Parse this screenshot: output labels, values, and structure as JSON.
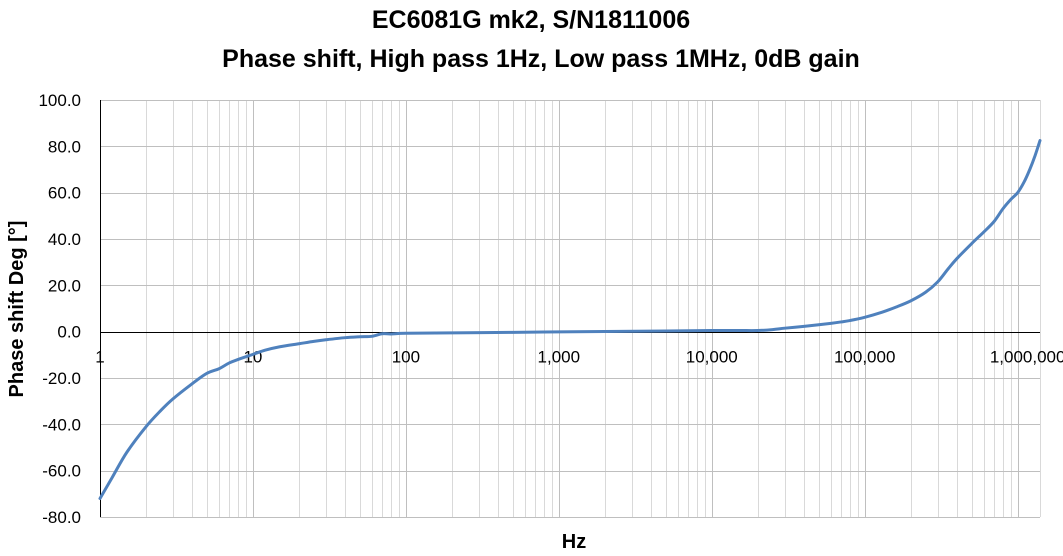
{
  "chart_data": {
    "type": "line",
    "title": "EC6081G mk2, S/N1811006",
    "subtitle": "Phase shift, High pass 1Hz, Low pass 1MHz, 0dB gain",
    "xlabel": "Hz",
    "ylabel": "Phase shift Deg [°]",
    "x_scale": "log",
    "xlim": [
      1,
      1400000
    ],
    "ylim": [
      -80,
      100
    ],
    "y_ticks": [
      100,
      80,
      60,
      40,
      20,
      0,
      -20,
      -40,
      -60,
      -80
    ],
    "y_tick_labels": [
      "100.0",
      "80.0",
      "60.0",
      "40.0",
      "20.0",
      "0.0",
      "-20.0",
      "-40.0",
      "-60.0",
      "-80.0"
    ],
    "x_ticks": [
      1,
      10,
      100,
      1000,
      10000,
      100000,
      1000000
    ],
    "x_tick_labels": [
      "1",
      "10",
      "100",
      "1,000",
      "10,000",
      "100,000",
      "1,000,000"
    ],
    "grid": true,
    "legend": "none",
    "series": [
      {
        "color": "#4f81bd",
        "x": [
          1,
          1.2,
          1.5,
          2,
          2.5,
          3,
          4,
          5,
          6,
          7,
          8,
          10,
          12,
          15,
          20,
          25,
          30,
          40,
          50,
          60,
          70,
          80,
          100,
          200,
          500,
          1000,
          2000,
          5000,
          10000,
          15000,
          20000,
          25000,
          30000,
          40000,
          50000,
          60000,
          70000,
          80000,
          100000,
          130000,
          160000,
          200000,
          250000,
          300000,
          350000,
          400000,
          500000,
          600000,
          700000,
          800000,
          900000,
          1000000,
          1100000,
          1200000,
          1300000,
          1400000
        ],
        "y": [
          -72,
          -63,
          -52,
          -41,
          -34,
          -29,
          -22.5,
          -18,
          -16,
          -13.5,
          -12,
          -9.8,
          -8,
          -6.5,
          -5.2,
          -4.2,
          -3.5,
          -2.6,
          -2.2,
          -2.0,
          -0.9,
          -1.0,
          -0.7,
          -0.5,
          -0.3,
          -0.1,
          0.1,
          0.3,
          0.5,
          0.5,
          0.5,
          0.9,
          1.5,
          2.3,
          3.0,
          3.6,
          4.2,
          4.8,
          6.2,
          8.4,
          10.6,
          13.3,
          17.0,
          21.5,
          27.0,
          31.5,
          38.0,
          43.0,
          47.5,
          53.0,
          57.0,
          60.0,
          64.5,
          70.0,
          76.0,
          82.5
        ]
      }
    ]
  }
}
